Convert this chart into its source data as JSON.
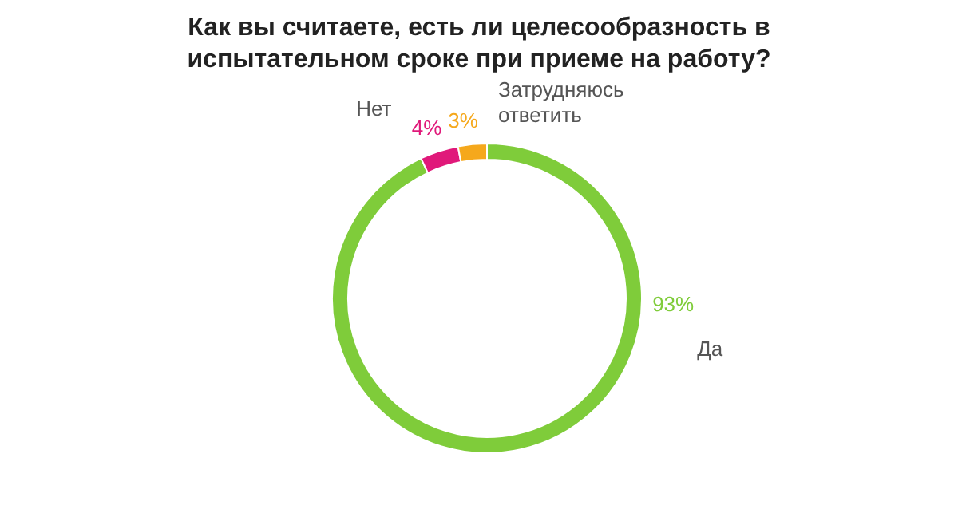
{
  "chart_data": {
    "type": "donut",
    "title": "Как вы считаете, есть ли целесообразность в испытательном сроке при приеме на работу?",
    "categories": [
      "Да",
      "Нет",
      "Затрудняюсь ответить"
    ],
    "values": [
      93,
      4,
      3
    ],
    "value_labels": [
      "93%",
      "4%",
      "3%"
    ],
    "colors": [
      "#7fcc3a",
      "#e0197a",
      "#f5a81c"
    ]
  }
}
